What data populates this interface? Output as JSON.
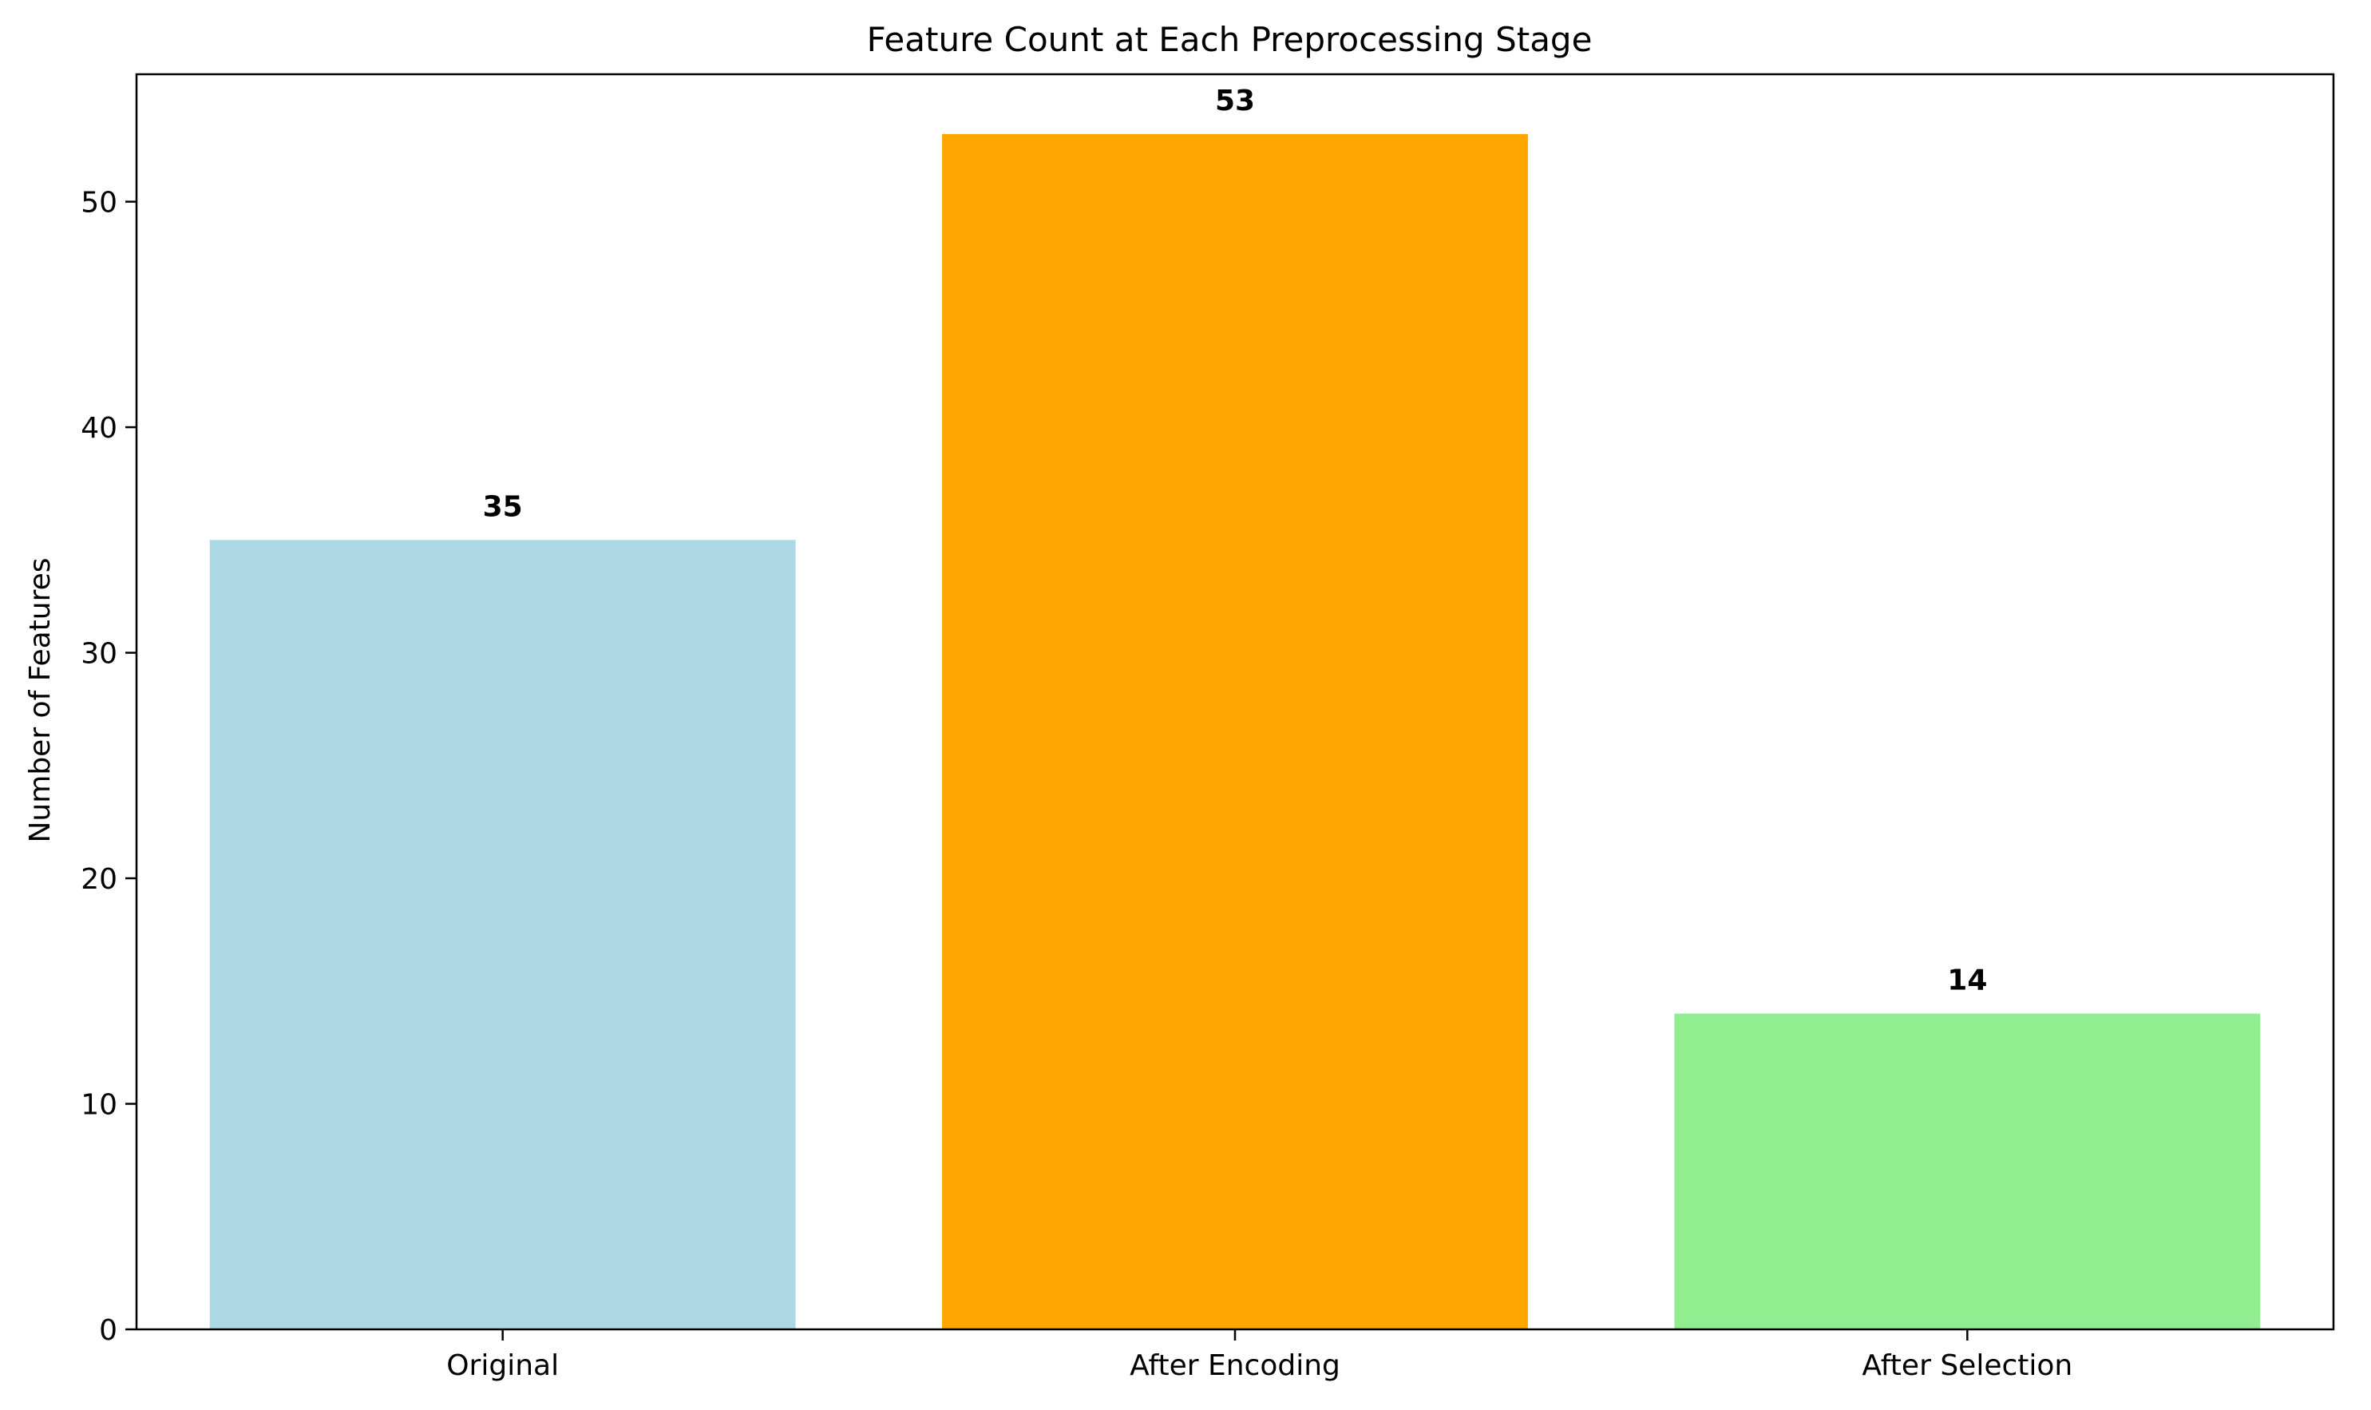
{
  "chart_data": {
    "type": "bar",
    "title": "Feature Count at Each Preprocessing Stage",
    "xlabel": "",
    "ylabel": "Number of Features",
    "categories": [
      "Original",
      "After Encoding",
      "After Selection"
    ],
    "values": [
      35,
      53,
      14
    ],
    "data_labels": [
      "35",
      "53",
      "14"
    ],
    "colors": [
      "#add8e6",
      "#ffa500",
      "#90ee90"
    ],
    "ylim": [
      0,
      55.65
    ],
    "yticks": [
      0,
      10,
      20,
      30,
      40,
      50
    ],
    "ytick_labels": [
      "0",
      "10",
      "20",
      "30",
      "40",
      "50"
    ],
    "grid": false,
    "legend": "none"
  }
}
